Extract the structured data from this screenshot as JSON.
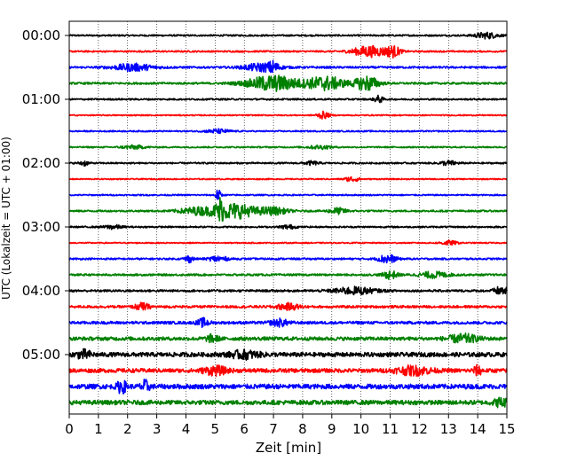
{
  "chart_data": {
    "type": "line",
    "chart_kind": "helicorder",
    "title": "",
    "xlabel": "Zeit  [min]",
    "ylabel": "UTC (Lokalzeit = UTC + 01:00)",
    "xlim": [
      0,
      15
    ],
    "x_ticks": [
      0,
      1,
      2,
      3,
      4,
      5,
      6,
      7,
      8,
      9,
      10,
      11,
      12,
      13,
      14,
      15
    ],
    "y_tick_labels": [
      "00:00",
      "01:00",
      "02:00",
      "03:00",
      "04:00",
      "05:00"
    ],
    "trace_interval_minutes": 15,
    "grid": "vertical dotted",
    "colors": [
      "#000000",
      "#ff0000",
      "#0000ff",
      "#008000"
    ],
    "traces": [
      {
        "row": 0,
        "color": "black",
        "base_amplitude": 0.08,
        "events": [
          {
            "x": 14.3,
            "width": 0.8,
            "amp": 0.3
          }
        ]
      },
      {
        "row": 1,
        "color": "red",
        "base_amplitude": 0.08,
        "events": [
          {
            "x": 10.3,
            "width": 1.2,
            "amp": 0.55
          },
          {
            "x": 11.1,
            "width": 0.5,
            "amp": 0.5
          }
        ]
      },
      {
        "row": 2,
        "color": "blue",
        "base_amplitude": 0.1,
        "events": [
          {
            "x": 2.2,
            "width": 1.4,
            "amp": 0.35
          },
          {
            "x": 6.6,
            "width": 1.2,
            "amp": 0.4
          },
          {
            "x": 7.0,
            "width": 0.3,
            "amp": 0.45
          }
        ]
      },
      {
        "row": 3,
        "color": "green",
        "base_amplitude": 0.1,
        "events": [
          {
            "x": 7.0,
            "width": 1.8,
            "amp": 0.8
          },
          {
            "x": 8.8,
            "width": 1.3,
            "amp": 0.7
          },
          {
            "x": 10.2,
            "width": 0.8,
            "amp": 0.75
          }
        ]
      },
      {
        "row": 4,
        "color": "black",
        "base_amplitude": 0.08,
        "events": [
          {
            "x": 10.6,
            "width": 0.3,
            "amp": 0.35
          }
        ]
      },
      {
        "row": 5,
        "color": "red",
        "base_amplitude": 0.06,
        "events": [
          {
            "x": 8.7,
            "width": 0.4,
            "amp": 0.35
          }
        ]
      },
      {
        "row": 6,
        "color": "blue",
        "base_amplitude": 0.07,
        "events": [
          {
            "x": 5.1,
            "width": 0.8,
            "amp": 0.2
          }
        ]
      },
      {
        "row": 7,
        "color": "green",
        "base_amplitude": 0.07,
        "events": [
          {
            "x": 2.2,
            "width": 0.8,
            "amp": 0.18
          },
          {
            "x": 8.6,
            "width": 0.8,
            "amp": 0.18
          }
        ]
      },
      {
        "row": 8,
        "color": "black",
        "base_amplitude": 0.08,
        "events": [
          {
            "x": 0.5,
            "width": 0.3,
            "amp": 0.25
          },
          {
            "x": 8.3,
            "width": 0.5,
            "amp": 0.18
          },
          {
            "x": 13.0,
            "width": 0.6,
            "amp": 0.22
          }
        ]
      },
      {
        "row": 9,
        "color": "red",
        "base_amplitude": 0.06,
        "events": [
          {
            "x": 9.7,
            "width": 0.5,
            "amp": 0.25
          }
        ]
      },
      {
        "row": 10,
        "color": "blue",
        "base_amplitude": 0.07,
        "events": [
          {
            "x": 5.1,
            "width": 0.2,
            "amp": 0.55
          }
        ]
      },
      {
        "row": 11,
        "color": "green",
        "base_amplitude": 0.09,
        "events": [
          {
            "x": 4.3,
            "width": 1.2,
            "amp": 0.3
          },
          {
            "x": 5.6,
            "width": 1.6,
            "amp": 0.8
          },
          {
            "x": 5.15,
            "width": 0.2,
            "amp": 0.95
          },
          {
            "x": 7.0,
            "width": 1.0,
            "amp": 0.35
          },
          {
            "x": 9.2,
            "width": 0.6,
            "amp": 0.3
          }
        ]
      },
      {
        "row": 12,
        "color": "black",
        "base_amplitude": 0.08,
        "events": [
          {
            "x": 1.5,
            "width": 0.6,
            "amp": 0.2
          },
          {
            "x": 7.5,
            "width": 0.5,
            "amp": 0.2
          }
        ]
      },
      {
        "row": 13,
        "color": "red",
        "base_amplitude": 0.06,
        "events": [
          {
            "x": 13.0,
            "width": 0.6,
            "amp": 0.22
          }
        ]
      },
      {
        "row": 14,
        "color": "blue",
        "base_amplitude": 0.09,
        "events": [
          {
            "x": 4.1,
            "width": 0.3,
            "amp": 0.35
          },
          {
            "x": 5.1,
            "width": 0.6,
            "amp": 0.3
          },
          {
            "x": 10.9,
            "width": 0.6,
            "amp": 0.45
          }
        ]
      },
      {
        "row": 15,
        "color": "green",
        "base_amplitude": 0.1,
        "events": [
          {
            "x": 11.0,
            "width": 0.5,
            "amp": 0.4
          },
          {
            "x": 12.5,
            "width": 1.0,
            "amp": 0.3
          }
        ]
      },
      {
        "row": 16,
        "color": "black",
        "base_amplitude": 0.11,
        "events": [
          {
            "x": 9.8,
            "width": 1.4,
            "amp": 0.35
          },
          {
            "x": 14.8,
            "width": 0.5,
            "amp": 0.4
          }
        ]
      },
      {
        "row": 17,
        "color": "red",
        "base_amplitude": 0.12,
        "events": [
          {
            "x": 2.5,
            "width": 0.5,
            "amp": 0.35
          },
          {
            "x": 7.5,
            "width": 0.8,
            "amp": 0.3
          }
        ]
      },
      {
        "row": 18,
        "color": "blue",
        "base_amplitude": 0.14,
        "events": [
          {
            "x": 4.6,
            "width": 0.4,
            "amp": 0.4
          },
          {
            "x": 7.2,
            "width": 0.6,
            "amp": 0.35
          }
        ]
      },
      {
        "row": 19,
        "color": "green",
        "base_amplitude": 0.18,
        "events": [
          {
            "x": 4.9,
            "width": 0.4,
            "amp": 0.35
          },
          {
            "x": 13.5,
            "width": 1.0,
            "amp": 0.4
          }
        ]
      },
      {
        "row": 20,
        "color": "black",
        "base_amplitude": 0.22,
        "events": [
          {
            "x": 0.5,
            "width": 0.5,
            "amp": 0.4
          },
          {
            "x": 6.0,
            "width": 1.0,
            "amp": 0.35
          }
        ]
      },
      {
        "row": 21,
        "color": "red",
        "base_amplitude": 0.2,
        "events": [
          {
            "x": 5.0,
            "width": 0.8,
            "amp": 0.4
          },
          {
            "x": 11.8,
            "width": 1.2,
            "amp": 0.4
          },
          {
            "x": 14.0,
            "width": 0.3,
            "amp": 0.45
          }
        ]
      },
      {
        "row": 22,
        "color": "blue",
        "base_amplitude": 0.24,
        "events": [
          {
            "x": 1.8,
            "width": 0.3,
            "amp": 0.65
          },
          {
            "x": 2.6,
            "width": 0.3,
            "amp": 0.55
          }
        ]
      },
      {
        "row": 23,
        "color": "green",
        "base_amplitude": 0.22,
        "events": [
          {
            "x": 14.8,
            "width": 0.5,
            "amp": 0.4
          }
        ]
      }
    ]
  }
}
